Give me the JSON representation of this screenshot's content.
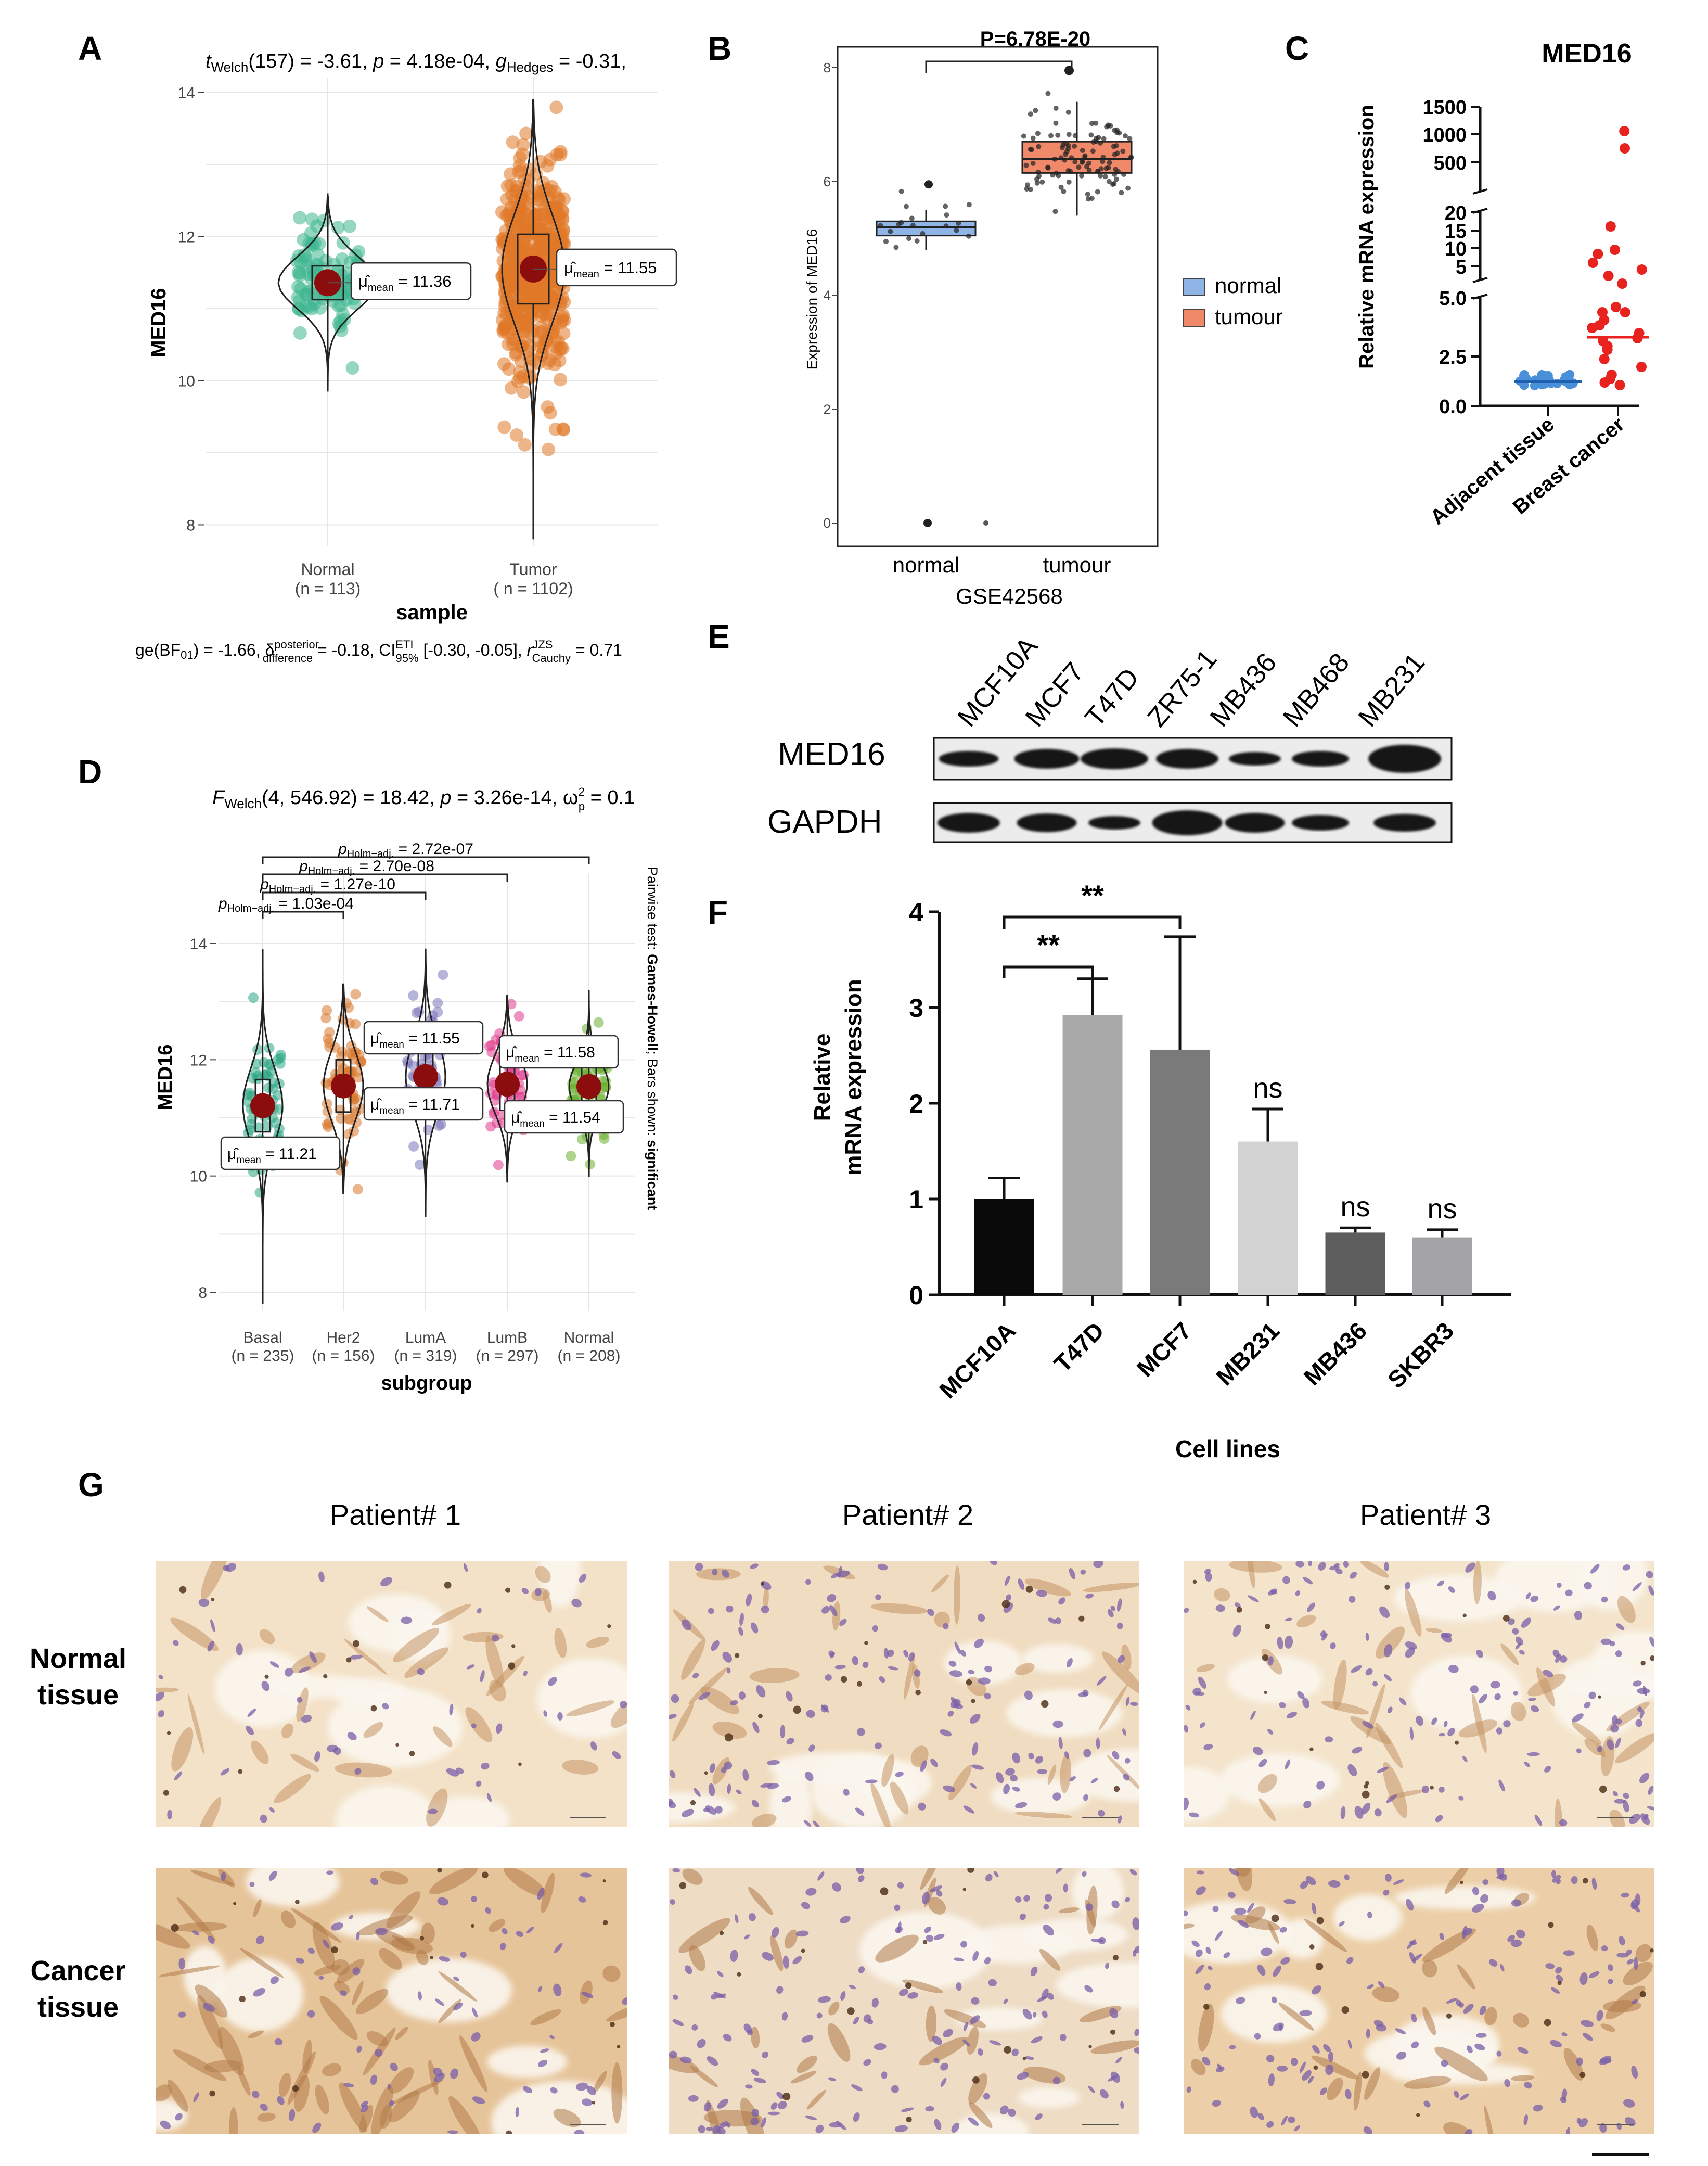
{
  "panels": {
    "A": {
      "letter": "A",
      "title_parts": {
        "t": "t",
        "t_sub": "Welch",
        "df": "(157) = -3.61, ",
        "p": "p",
        "pval": " = 4.18e-04, ",
        "g": "g",
        "g_sub": "Hedges",
        "gval": " = -0.31,"
      },
      "ylabel": "MED16",
      "xlabel": "sample",
      "yticks": [
        "8",
        "10",
        "12",
        "14"
      ],
      "groups": [
        {
          "label": "Normal",
          "n": "(n = 113)",
          "mean_label": "11.36",
          "mean": 11.36,
          "color": "#3fb68f"
        },
        {
          "label": "Tumor",
          "n": "( n = 1102)",
          "mean_label": "11.55",
          "mean": 11.55,
          "color": "#e07828"
        }
      ],
      "mu_sub": "mean",
      "footer": {
        "pre": "ɡe(BF",
        "bf_sub": "01",
        "mid": ") = -1.66, ",
        "delta": "δ",
        "delta_sup": "posterior",
        "delta_sub": "difference",
        "dval": " = -0.18, CI",
        "ci_sup": "ETI",
        "ci_sub": "95%",
        "cival": " [-0.30, -0.05], ",
        "r": "r",
        "r_sup": "JZS",
        "r_sub": "Cauchy",
        "rval": " = 0.71"
      }
    },
    "B": {
      "letter": "B",
      "pvalue": "P=6.78E-20",
      "ylabel": "Expression of  MED16",
      "xlabel": "GSE42568",
      "yticks": [
        "0",
        "2",
        "4",
        "6",
        "8"
      ],
      "groups": [
        "normal",
        "tumour"
      ],
      "legend": [
        {
          "label": "normal",
          "color": "#8fb4e6"
        },
        {
          "label": "tumour",
          "color": "#f0886a"
        }
      ]
    },
    "C": {
      "letter": "C",
      "title": "MED16",
      "ylabel": "Relative mRNA expression",
      "yticks_top": [
        "1500",
        "1000",
        "500"
      ],
      "yticks_mid": [
        "20",
        "15",
        "10",
        "5"
      ],
      "yticks_low": [
        "5.0",
        "2.5",
        "0.0"
      ],
      "categories": [
        "Adjacent tissue",
        "Breast cancer"
      ],
      "colors": [
        "#4a90d9",
        "#e8221e"
      ]
    },
    "D": {
      "letter": "D",
      "title_parts": {
        "F": "F",
        "F_sub": "Welch",
        "val": "(4, 546.92) = 18.42, ",
        "p": "p",
        "pval": " = 3.26e-14, ",
        "om": "ω",
        "om_sub": "p",
        "om_sup": "2",
        "omval": " = 0.1"
      },
      "ylabel": "MED16",
      "xlabel": "subgroup",
      "yticks": [
        "8",
        "10",
        "12",
        "14"
      ],
      "side_text_a": "Pairwise test: ",
      "side_text_b": "Games-Howell",
      "side_text_c": "; Bars shown: ",
      "side_text_d": "significant",
      "p_label": "p",
      "p_sub": "Holm−adj.",
      "brackets": [
        {
          "value": " = 2.72e-07"
        },
        {
          "value": " = 2.70e-08"
        },
        {
          "value": " = 1.27e-10"
        },
        {
          "value": " = 1.03e-04"
        }
      ],
      "mu_sub": "mean",
      "groups": [
        {
          "label": "Basal",
          "n": "(n = 235)",
          "mean_label": "11.21",
          "mean": 11.21,
          "color": "#2aa583"
        },
        {
          "label": "Her2",
          "n": "(n = 156)",
          "mean_label": "11.55",
          "mean": 11.55,
          "color": "#d9782e"
        },
        {
          "label": "LumA",
          "n": "(n = 319)",
          "mean_label": "11.71",
          "mean": 11.71,
          "color": "#7c77bb"
        },
        {
          "label": "LumB",
          "n": "(n = 297)",
          "mean_label": "11.58",
          "mean": 11.58,
          "color": "#e03b8c"
        },
        {
          "label": "Normal",
          "n": "(n = 208)",
          "mean_label": "11.54",
          "mean": 11.54,
          "color": "#6aae2f"
        }
      ]
    },
    "E": {
      "letter": "E",
      "lanes": [
        "MCF10A",
        "MCF7",
        "T47D",
        "ZR75-1",
        "MB436",
        "MB468",
        "MB231"
      ],
      "rows": [
        "MED16",
        "GAPDH"
      ]
    },
    "F": {
      "letter": "F",
      "ylabel_1": "Relative",
      "ylabel_2": "mRNA expression",
      "xlabel": "Cell lines",
      "yticks": [
        "0",
        "1",
        "2",
        "3",
        "4"
      ],
      "sig_a": "**",
      "sig_b": "**"
    },
    "G": {
      "letter": "G",
      "patients": [
        "Patient# 1",
        "Patient# 2",
        "Patient# 3"
      ],
      "row_1a": "Normal",
      "row_1b": "tissue",
      "row_2a": "Cancer",
      "row_2b": "tissue"
    }
  },
  "chart_data": [
    {
      "type": "violin",
      "panel": "A",
      "title": "tWelch(157) = -3.61, p = 4.18e-04, gHedges = -0.31",
      "xlabel": "sample",
      "ylabel": "MED16",
      "categories": [
        "Normal",
        "Tumor"
      ],
      "means": [
        11.36,
        11.55
      ],
      "n": [
        113,
        1102
      ],
      "ylim": [
        7.7,
        14.2
      ]
    },
    {
      "type": "box",
      "panel": "B",
      "xlabel": "GSE42568",
      "ylabel": "Expression of MED16",
      "categories": [
        "normal",
        "tumour"
      ],
      "medians": [
        5.2,
        6.4
      ],
      "ylim": [
        0,
        8
      ],
      "annotation": "P=6.78E-20"
    },
    {
      "type": "scatter",
      "panel": "C",
      "title": "MED16",
      "ylabel": "Relative mRNA expression",
      "categories": [
        "Adjacent tissue",
        "Breast cancer"
      ],
      "medians": [
        1.0,
        3.3
      ]
    },
    {
      "type": "violin",
      "panel": "D",
      "xlabel": "subgroup",
      "ylabel": "MED16",
      "categories": [
        "Basal",
        "Her2",
        "LumA",
        "LumB",
        "Normal"
      ],
      "means": [
        11.21,
        11.55,
        11.71,
        11.58,
        11.54
      ],
      "n": [
        235,
        156,
        319,
        297,
        208
      ],
      "ylim": [
        7.7,
        14.2
      ]
    },
    {
      "type": "bar",
      "panel": "F",
      "xlabel": "Cell lines",
      "ylabel": "Relative mRNA expression",
      "categories": [
        "MCF10A",
        "T47D",
        "MCF7",
        "MB231",
        "MB436",
        "SKBR3"
      ],
      "values": [
        1.0,
        2.92,
        2.56,
        1.6,
        0.65,
        0.6
      ],
      "errors": [
        0.22,
        0.38,
        1.18,
        0.34,
        0.05,
        0.08
      ],
      "annotations": [
        "",
        "**",
        "**",
        "ns",
        "ns",
        "ns"
      ],
      "colors": [
        "#0a0a0a",
        "#a9a9a9",
        "#7a7a7a",
        "#d2d2d2",
        "#5d5d5d",
        "#a4a4a8"
      ],
      "ylim": [
        0,
        4
      ]
    }
  ]
}
